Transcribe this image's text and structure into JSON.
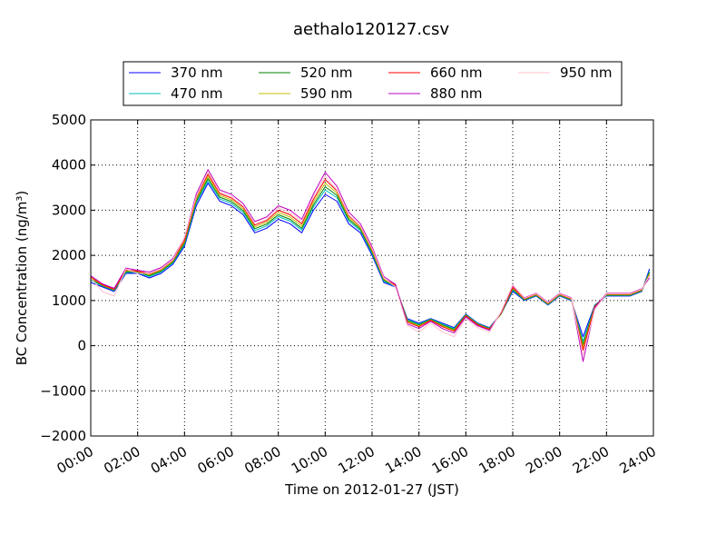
{
  "chart_data": {
    "type": "line",
    "title": "aethalo120127.csv",
    "xlabel": "Time on 2012-01-27 (JST)",
    "ylabel": "BC Concentration (ng/m³)",
    "xlim": [
      "00:00",
      "24:00"
    ],
    "ylim": [
      -2000,
      5000
    ],
    "x_ticks": [
      "00:00",
      "02:00",
      "04:00",
      "06:00",
      "08:00",
      "10:00",
      "12:00",
      "14:00",
      "16:00",
      "18:00",
      "20:00",
      "22:00",
      "24:00"
    ],
    "y_ticks": [
      -2000,
      -1000,
      0,
      1000,
      2000,
      3000,
      4000,
      5000
    ],
    "grid": true,
    "legend_position": "top",
    "x": [
      "00:00",
      "00:30",
      "01:00",
      "01:30",
      "02:00",
      "02:30",
      "03:00",
      "03:30",
      "04:00",
      "04:30",
      "05:00",
      "05:30",
      "06:00",
      "06:30",
      "07:00",
      "07:30",
      "08:00",
      "08:30",
      "09:00",
      "09:30",
      "10:00",
      "10:30",
      "11:00",
      "11:30",
      "12:00",
      "12:30",
      "13:00",
      "13:30",
      "14:00",
      "14:30",
      "15:00",
      "15:30",
      "16:00",
      "16:30",
      "17:00",
      "17:30",
      "18:00",
      "18:30",
      "19:00",
      "19:30",
      "20:00",
      "20:30",
      "21:00",
      "21:30",
      "22:00",
      "22:30",
      "23:00",
      "23:30",
      "23:50"
    ],
    "series": [
      {
        "name": "370 nm",
        "color": "#0000ff",
        "values": [
          1400,
          1300,
          1200,
          1600,
          1600,
          1500,
          1600,
          1800,
          2200,
          3100,
          3600,
          3200,
          3100,
          2900,
          2500,
          2600,
          2800,
          2700,
          2500,
          3000,
          3350,
          3200,
          2700,
          2500,
          2000,
          1400,
          1300,
          600,
          500,
          600,
          500,
          400,
          700,
          500,
          400,
          700,
          1200,
          1000,
          1100,
          900,
          1100,
          1000,
          200,
          900,
          1100,
          1100,
          1100,
          1200,
          1700
        ]
      },
      {
        "name": "470 nm",
        "color": "#00bfbf",
        "values": [
          1450,
          1320,
          1220,
          1620,
          1620,
          1530,
          1630,
          1830,
          2240,
          3160,
          3650,
          3250,
          3150,
          2950,
          2550,
          2650,
          2860,
          2760,
          2560,
          3070,
          3450,
          3280,
          2760,
          2550,
          2040,
          1430,
          1310,
          580,
          480,
          590,
          480,
          380,
          690,
          490,
          390,
          700,
          1230,
          1010,
          1110,
          910,
          1110,
          1010,
          100,
          890,
          1110,
          1110,
          1110,
          1210,
          1650
        ]
      },
      {
        "name": "520 nm",
        "color": "#008000",
        "values": [
          1480,
          1330,
          1230,
          1640,
          1630,
          1550,
          1650,
          1850,
          2270,
          3200,
          3700,
          3290,
          3190,
          2990,
          2590,
          2690,
          2900,
          2800,
          2600,
          3120,
          3520,
          3330,
          2800,
          2580,
          2070,
          1450,
          1320,
          560,
          460,
          580,
          460,
          360,
          680,
          480,
          380,
          700,
          1250,
          1020,
          1120,
          920,
          1120,
          1020,
          30,
          880,
          1120,
          1120,
          1120,
          1220,
          1620
        ]
      },
      {
        "name": "590 nm",
        "color": "#bfbf00",
        "values": [
          1500,
          1340,
          1240,
          1660,
          1640,
          1570,
          1670,
          1870,
          2300,
          3240,
          3750,
          3330,
          3230,
          3030,
          2630,
          2730,
          2950,
          2850,
          2650,
          3180,
          3600,
          3380,
          2840,
          2610,
          2100,
          1470,
          1330,
          540,
          440,
          570,
          440,
          340,
          670,
          470,
          370,
          710,
          1270,
          1030,
          1130,
          930,
          1130,
          1030,
          -30,
          870,
          1130,
          1130,
          1130,
          1230,
          1590
        ]
      },
      {
        "name": "660 nm",
        "color": "#ff0000",
        "values": [
          1520,
          1350,
          1250,
          1680,
          1650,
          1590,
          1690,
          1890,
          2330,
          3280,
          3800,
          3370,
          3270,
          3070,
          2670,
          2770,
          3000,
          2900,
          2700,
          3240,
          3680,
          3430,
          2880,
          2640,
          2130,
          1490,
          1340,
          520,
          420,
          560,
          420,
          320,
          660,
          460,
          360,
          720,
          1290,
          1040,
          1140,
          940,
          1140,
          1040,
          -100,
          860,
          1140,
          1140,
          1140,
          1240,
          1560
        ]
      },
      {
        "name": "880 nm",
        "color": "#bf00bf",
        "values": [
          1550,
          1370,
          1270,
          1720,
          1670,
          1630,
          1730,
          1930,
          2390,
          3360,
          3900,
          3450,
          3350,
          3150,
          2750,
          2850,
          3100,
          3000,
          2800,
          3360,
          3840,
          3530,
          2960,
          2700,
          2190,
          1530,
          1360,
          480,
          380,
          540,
          380,
          280,
          640,
          440,
          340,
          740,
          1330,
          1060,
          1160,
          960,
          1160,
          1060,
          -350,
          840,
          1160,
          1160,
          1160,
          1260,
          1500
        ]
      },
      {
        "name": "950 nm",
        "color": "#ffc0cb",
        "values": [
          1500,
          1200,
          1100,
          1700,
          1600,
          1600,
          1700,
          1900,
          2400,
          3300,
          3850,
          3400,
          3300,
          3100,
          2700,
          2800,
          3050,
          2950,
          2750,
          3300,
          3750,
          3450,
          2900,
          2650,
          2150,
          1500,
          1300,
          450,
          300,
          500,
          300,
          200,
          600,
          400,
          300,
          750,
          1350,
          1050,
          1150,
          950,
          1150,
          1050,
          -200,
          800,
          1150,
          1150,
          1150,
          1250,
          1550
        ]
      }
    ]
  }
}
